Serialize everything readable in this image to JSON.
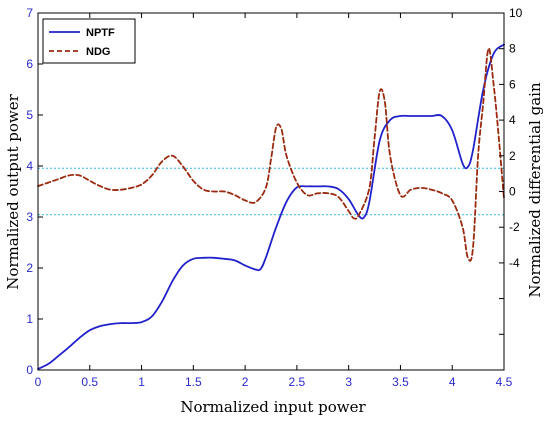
{
  "chart_data": {
    "type": "line",
    "xlabel": "Normalized input power",
    "ylabel_left": "Normalized output power",
    "ylabel_right": "Normalized differential gain",
    "xlim": [
      0,
      4.5
    ],
    "ylim_left": [
      0,
      7
    ],
    "ylim_right": [
      -10,
      10
    ],
    "x_ticks": [
      "0",
      "0.5",
      "1",
      "1.5",
      "2",
      "2.5",
      "3",
      "3.5",
      "4",
      "4.5"
    ],
    "y_left_ticks": [
      "0",
      "1",
      "2",
      "3",
      "4",
      "5",
      "6",
      "7"
    ],
    "y_right_ticks": [
      "-4",
      "-2",
      "0",
      "2",
      "4",
      "6",
      "8",
      "10"
    ],
    "y_right_tick_values": [
      -4,
      -2,
      0,
      2,
      4,
      6,
      8,
      10
    ],
    "legend_position": "top-left",
    "reference_lines_right_axis": [
      1.3,
      -1.3
    ],
    "series": [
      {
        "name": "NPTF",
        "axis": "left",
        "color": "#2222cc",
        "style": "solid",
        "x": [
          0,
          0.1,
          0.2,
          0.3,
          0.4,
          0.5,
          0.6,
          0.7,
          0.8,
          0.9,
          1.0,
          1.1,
          1.2,
          1.3,
          1.4,
          1.5,
          1.6,
          1.7,
          1.8,
          1.9,
          2.0,
          2.1,
          2.15,
          2.2,
          2.3,
          2.4,
          2.5,
          2.6,
          2.7,
          2.8,
          2.9,
          3.0,
          3.1,
          3.15,
          3.2,
          3.3,
          3.4,
          3.5,
          3.6,
          3.7,
          3.8,
          3.9,
          4.0,
          4.1,
          4.15,
          4.2,
          4.3,
          4.4,
          4.5
        ],
        "y": [
          0.02,
          0.12,
          0.28,
          0.45,
          0.63,
          0.78,
          0.86,
          0.9,
          0.92,
          0.92,
          0.94,
          1.05,
          1.35,
          1.75,
          2.05,
          2.18,
          2.2,
          2.2,
          2.18,
          2.15,
          2.05,
          1.97,
          1.98,
          2.2,
          2.8,
          3.3,
          3.58,
          3.6,
          3.6,
          3.6,
          3.55,
          3.35,
          3.02,
          3.0,
          3.3,
          4.5,
          4.9,
          4.98,
          4.98,
          4.98,
          4.98,
          4.98,
          4.7,
          4.05,
          3.98,
          4.3,
          5.5,
          6.2,
          6.38
        ]
      },
      {
        "name": "NDG",
        "axis": "right",
        "color": "#9a2a10",
        "style": "dashed",
        "x": [
          0,
          0.1,
          0.2,
          0.3,
          0.4,
          0.5,
          0.6,
          0.7,
          0.8,
          0.9,
          1.0,
          1.1,
          1.2,
          1.3,
          1.4,
          1.5,
          1.6,
          1.7,
          1.8,
          1.9,
          2.0,
          2.1,
          2.2,
          2.25,
          2.3,
          2.35,
          2.4,
          2.5,
          2.6,
          2.7,
          2.8,
          2.9,
          3.0,
          3.05,
          3.1,
          3.2,
          3.25,
          3.3,
          3.35,
          3.4,
          3.5,
          3.6,
          3.7,
          3.8,
          3.9,
          4.0,
          4.1,
          4.15,
          4.2,
          4.25,
          4.3,
          4.35,
          4.4,
          4.45,
          4.5
        ],
        "y": [
          0.3,
          0.5,
          0.7,
          0.9,
          0.9,
          0.6,
          0.3,
          0.1,
          0.1,
          0.2,
          0.4,
          0.9,
          1.7,
          2.0,
          1.4,
          0.6,
          0.1,
          0.0,
          0.0,
          -0.2,
          -0.5,
          -0.6,
          0.2,
          1.8,
          3.6,
          3.5,
          2.0,
          0.5,
          -0.2,
          -0.1,
          -0.1,
          -0.3,
          -1.1,
          -1.5,
          -1.3,
          0.2,
          3.0,
          5.6,
          5.0,
          2.0,
          -0.2,
          0.1,
          0.2,
          0.1,
          -0.1,
          -0.5,
          -2.0,
          -3.7,
          -3.2,
          2.0,
          5.0,
          8.0,
          6.0,
          3.0,
          -0.4
        ]
      }
    ]
  }
}
